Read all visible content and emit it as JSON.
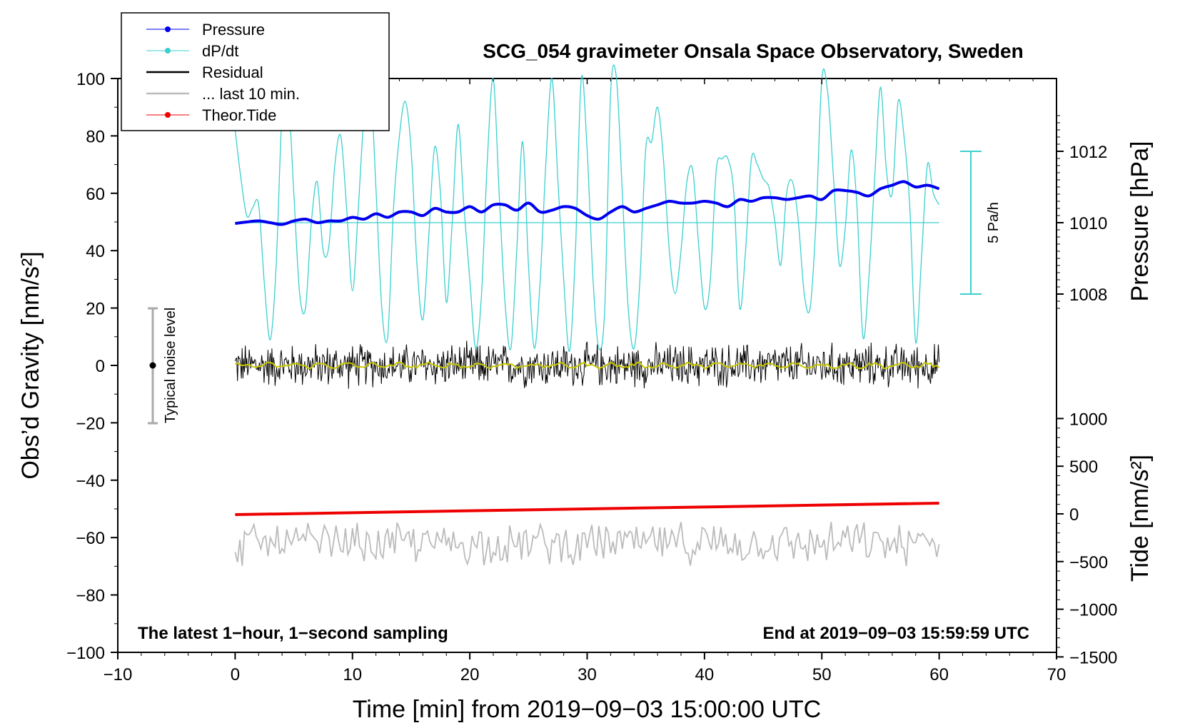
{
  "chart_data": {
    "type": "line",
    "title": "SCG_054 gravimeter Onsala Space Observatory, Sweden",
    "xlabel": "Time [min] from 2019−09−03 15:00:00 UTC",
    "ylabel": "Obs’d Gravity [nm/s²]",
    "xlim": [
      -10,
      70
    ],
    "ylim": [
      -100,
      100
    ],
    "x_ticks": [
      "−10",
      "0",
      "10",
      "20",
      "30",
      "40",
      "50",
      "60",
      "70"
    ],
    "y_ticks": [
      "100",
      "80",
      "60",
      "40",
      "20",
      "0",
      "−20",
      "−40",
      "−60",
      "−80",
      "−100"
    ],
    "pressure_axis": {
      "label": "Pressure [hPa]",
      "ticks": [
        "1012",
        "1010",
        "1008"
      ],
      "lim_top_gravity_equivalent": [
        1007,
        1013
      ]
    },
    "tide_axis": {
      "label": "Tide [nm/s²]",
      "ticks": [
        "1000",
        "500",
        "0",
        "−500",
        "−1000",
        "−1500"
      ]
    },
    "legend": [
      {
        "label": "Pressure",
        "color": "#0000ee",
        "marker": "dot"
      },
      {
        "label": "dP/dt",
        "color": "#3ccfcf",
        "marker": "dot"
      },
      {
        "label": "Residual",
        "color": "#000000",
        "marker": "line"
      },
      {
        "label": "... last 10 min.",
        "color": "#bbbbbb",
        "marker": "line"
      },
      {
        "label": "Theor.Tide",
        "color": "#ee0000",
        "marker": "dot"
      }
    ],
    "annotations": {
      "noise_label": "Typical noise level",
      "dpdt_scale": "5 Pa/h",
      "bottom_left": "The latest 1−hour, 1−second sampling",
      "bottom_right": "End at 2019−09−03 15:59:59 UTC"
    },
    "noise_bar": {
      "x": -7,
      "center": 0,
      "half_range": 20
    },
    "dpdt_scale_bar": {
      "x": 62,
      "low_pressure": 1008,
      "high_pressure": 1012
    },
    "series": [
      {
        "name": "Pressure",
        "unit": "hPa",
        "x": [
          0,
          1,
          2,
          3,
          4,
          5,
          6,
          7,
          8,
          9,
          10,
          11,
          12,
          13,
          14,
          15,
          16,
          17,
          18,
          19,
          20,
          21,
          22,
          23,
          24,
          25,
          26,
          27,
          28,
          29,
          30,
          31,
          32,
          33,
          34,
          35,
          36,
          37,
          38,
          39,
          40,
          41,
          42,
          43,
          44,
          45,
          46,
          47,
          48,
          49,
          50,
          51,
          52,
          53,
          54,
          55,
          56,
          57,
          58,
          59,
          60
        ],
        "values": [
          1009.98,
          1010.02,
          1010.05,
          1010.0,
          1009.95,
          1010.05,
          1010.1,
          1010.0,
          1010.05,
          1010.05,
          1010.15,
          1010.1,
          1010.25,
          1010.15,
          1010.3,
          1010.3,
          1010.2,
          1010.4,
          1010.3,
          1010.3,
          1010.45,
          1010.3,
          1010.5,
          1010.5,
          1010.35,
          1010.55,
          1010.3,
          1010.35,
          1010.45,
          1010.4,
          1010.2,
          1010.1,
          1010.3,
          1010.45,
          1010.3,
          1010.4,
          1010.5,
          1010.6,
          1010.55,
          1010.55,
          1010.6,
          1010.55,
          1010.45,
          1010.65,
          1010.6,
          1010.7,
          1010.7,
          1010.65,
          1010.7,
          1010.75,
          1010.65,
          1010.9,
          1010.9,
          1010.85,
          1010.75,
          1010.95,
          1011.05,
          1011.15,
          1011.0,
          1011.05,
          1010.95
        ]
      },
      {
        "name": "dP/dt",
        "unit": "gravity-axis equivalent",
        "x": [
          0,
          0.5,
          1,
          1.5,
          2,
          2.5,
          3,
          3.5,
          4,
          4.5,
          5,
          5.5,
          6,
          6.5,
          7,
          7.5,
          8,
          8.5,
          9,
          9.5,
          10,
          10.5,
          11,
          11.5,
          12,
          12.5,
          13,
          13.5,
          14,
          14.5,
          15,
          15.5,
          16,
          16.5,
          17,
          17.5,
          18,
          18.5,
          19,
          19.5,
          20,
          20.5,
          21,
          21.5,
          22,
          22.5,
          23,
          23.5,
          24,
          24.5,
          25,
          25.5,
          26,
          26.5,
          27,
          27.5,
          28,
          28.5,
          29,
          29.5,
          30,
          30.5,
          31,
          31.5,
          32,
          32.5,
          33,
          33.5,
          34,
          34.5,
          35,
          35.5,
          36,
          36.5,
          37,
          37.5,
          38,
          38.5,
          39,
          39.5,
          40,
          40.5,
          41,
          41.5,
          42,
          42.5,
          43,
          43.5,
          44,
          44.5,
          45,
          45.5,
          46,
          46.5,
          47,
          47.5,
          48,
          48.5,
          49,
          49.5,
          50,
          50.5,
          51,
          51.5,
          52,
          52.5,
          53,
          53.5,
          54,
          54.5,
          55,
          55.5,
          56,
          56.5,
          57,
          57.5,
          58,
          58.5,
          59,
          59.5,
          60
        ],
        "values": [
          82,
          65,
          52,
          55,
          56,
          28,
          9,
          35,
          88,
          96,
          60,
          25,
          20,
          50,
          64,
          40,
          42,
          70,
          80,
          55,
          26,
          55,
          88,
          100,
          62,
          20,
          10,
          55,
          80,
          92,
          75,
          35,
          16,
          45,
          76,
          60,
          22,
          50,
          84,
          55,
          30,
          6,
          25,
          72,
          100,
          60,
          22,
          6,
          40,
          78,
          35,
          6,
          30,
          72,
          100,
          65,
          30,
          5,
          40,
          100,
          75,
          30,
          6,
          20,
          95,
          100,
          60,
          20,
          6,
          30,
          76,
          78,
          90,
          72,
          40,
          25,
          40,
          64,
          68,
          42,
          20,
          30,
          68,
          72,
          72,
          60,
          20,
          40,
          72,
          70,
          65,
          62,
          50,
          35,
          60,
          64,
          50,
          25,
          20,
          50,
          100,
          95,
          65,
          35,
          48,
          75,
          55,
          10,
          30,
          65,
          97,
          68,
          60,
          92,
          80,
          55,
          8,
          38,
          70,
          60,
          56
        ]
      },
      {
        "name": "Residual",
        "unit": "nm/s²",
        "x": [
          0,
          60
        ],
        "values": [
          0,
          0
        ],
        "noise_amplitude": 6
      },
      {
        "name": "... last 10 min.",
        "unit": "nm/s² (display offset)",
        "x": [
          0,
          60
        ],
        "values": [
          -62,
          -62
        ],
        "noise_amplitude": 6
      },
      {
        "name": "Theor.Tide",
        "unit": "nm/s²",
        "x": [
          0,
          60
        ],
        "values": [
          -52,
          -48
        ]
      }
    ]
  }
}
